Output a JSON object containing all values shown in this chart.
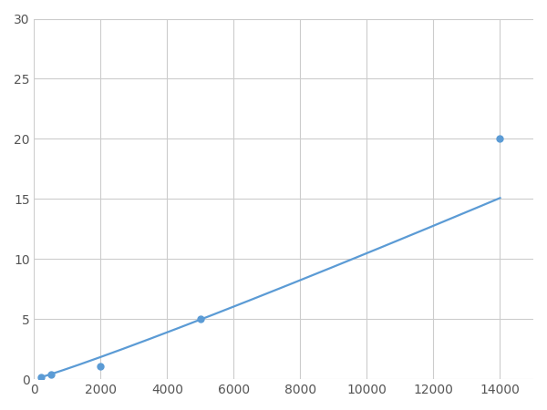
{
  "x_data": [
    200,
    500,
    2000,
    5000,
    14000
  ],
  "y_data": [
    0.2,
    0.4,
    1.1,
    5.0,
    20.0
  ],
  "line_color": "#5b9bd5",
  "marker_color": "#5b9bd5",
  "marker_size": 5,
  "line_width": 1.6,
  "xlim": [
    0,
    15000
  ],
  "ylim": [
    0,
    30
  ],
  "xticks": [
    0,
    2000,
    4000,
    6000,
    8000,
    10000,
    12000,
    14000
  ],
  "yticks": [
    0,
    5,
    10,
    15,
    20,
    25,
    30
  ],
  "grid_color": "#cccccc",
  "background_color": "#ffffff",
  "figsize": [
    6.0,
    4.5
  ],
  "dpi": 100
}
